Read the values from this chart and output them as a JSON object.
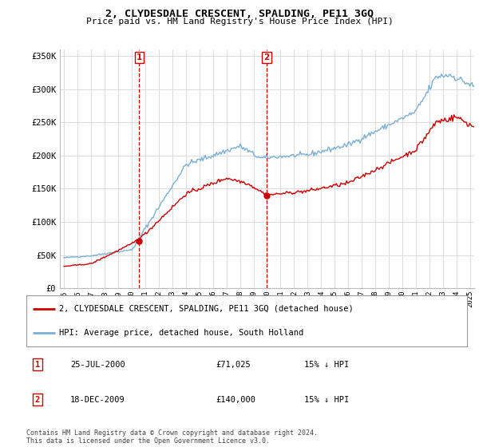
{
  "title": "2, CLYDESDALE CRESCENT, SPALDING, PE11 3GQ",
  "subtitle": "Price paid vs. HM Land Registry's House Price Index (HPI)",
  "legend_entry1": "2, CLYDESDALE CRESCENT, SPALDING, PE11 3GQ (detached house)",
  "legend_entry2": "HPI: Average price, detached house, South Holland",
  "footnote": "Contains HM Land Registry data © Crown copyright and database right 2024.\nThis data is licensed under the Open Government Licence v3.0.",
  "sale1_date_num": 2000.56,
  "sale1_price": 71025,
  "sale2_date_num": 2009.97,
  "sale2_price": 140000,
  "vline1_x": 2000.56,
  "vline2_x": 2009.97,
  "ylim": [
    0,
    360000
  ],
  "xlim_start": 1994.7,
  "xlim_end": 2025.3,
  "red_color": "#cc0000",
  "blue_color": "#7ab0d4",
  "vline_color": "#cc0000",
  "background_color": "#ffffff",
  "grid_color": "#dddddd",
  "yticks": [
    0,
    50000,
    100000,
    150000,
    200000,
    250000,
    300000,
    350000
  ],
  "ytick_labels": [
    "£0",
    "£50K",
    "£100K",
    "£150K",
    "£200K",
    "£250K",
    "£300K",
    "£350K"
  ],
  "xticks": [
    1995,
    1996,
    1997,
    1998,
    1999,
    2000,
    2001,
    2002,
    2003,
    2004,
    2005,
    2006,
    2007,
    2008,
    2009,
    2010,
    2011,
    2012,
    2013,
    2014,
    2015,
    2016,
    2017,
    2018,
    2019,
    2020,
    2021,
    2022,
    2023,
    2024,
    2025
  ]
}
